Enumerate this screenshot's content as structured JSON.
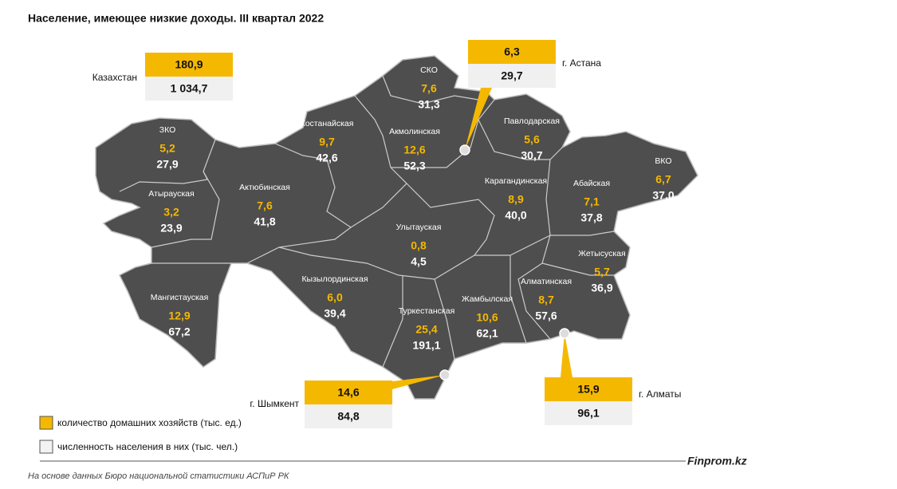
{
  "title": "Население, имеющее низкие доходы. III квартал 2022",
  "summary": [
    {
      "name": "Казахстан",
      "households": "180,9",
      "population": "1 034,7"
    },
    {
      "name": "г. Астана",
      "households": "6,3",
      "population": "29,7"
    },
    {
      "name": "г. Шымкент",
      "households": "14,6",
      "population": "84,8"
    },
    {
      "name": "г. Алматы",
      "households": "15,9",
      "population": "96,1"
    }
  ],
  "regions": [
    {
      "name": "ЗКО",
      "households": "5,2",
      "population": "27,9"
    },
    {
      "name": "Атырауская",
      "households": "3,2",
      "population": "23,9"
    },
    {
      "name": "Актюбинская",
      "households": "7,6",
      "population": "41,8"
    },
    {
      "name": "Мангистауская",
      "households": "12,9",
      "population": "67,2"
    },
    {
      "name": "Костанайская",
      "households": "9,7",
      "population": "42,6"
    },
    {
      "name": "СКО",
      "households": "7,6",
      "population": "31,3"
    },
    {
      "name": "Акмолинская",
      "households": "12,6",
      "population": "52,3"
    },
    {
      "name": "Павлодарская",
      "households": "5,6",
      "population": "30,7"
    },
    {
      "name": "Карагандинская",
      "households": "8,9",
      "population": "40,0"
    },
    {
      "name": "Абайская",
      "households": "7,1",
      "population": "37,8"
    },
    {
      "name": "ВКО",
      "households": "6,7",
      "population": "37,0"
    },
    {
      "name": "Улытауская",
      "households": "0,8",
      "population": "4,5"
    },
    {
      "name": "Кызылординская",
      "households": "6,0",
      "population": "39,4"
    },
    {
      "name": "Туркестанская",
      "households": "25,4",
      "population": "191,1"
    },
    {
      "name": "Жамбылская",
      "households": "10,6",
      "population": "62,1"
    },
    {
      "name": "Алматинская",
      "households": "8,7",
      "population": "57,6"
    },
    {
      "name": "Жетысуская",
      "households": "5,7",
      "population": "36,9"
    }
  ],
  "legend": {
    "households": "количество домашних хозяйств (тыс. ед.)",
    "population": "численность населения в них (тыс. чел.)"
  },
  "brand": "Finprom.kz",
  "source": "На основе данных Бюро национальной статистики АСПиР РК"
}
